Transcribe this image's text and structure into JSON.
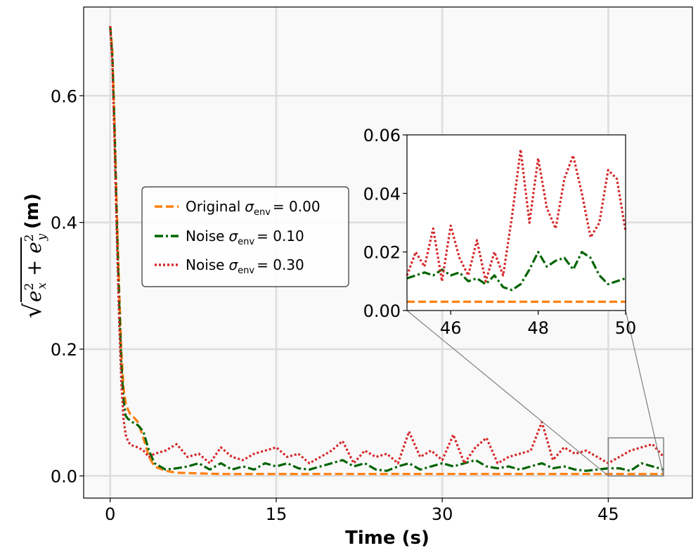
{
  "chart_data": {
    "type": "line",
    "xlabel": "Time (s)",
    "ylabel": "√(e_x² + e_y²) (m)",
    "ylabel_suffix": "(m)",
    "xlim": [
      -2.4,
      52.6
    ],
    "ylim": [
      -0.035,
      0.74
    ],
    "xticks": [
      0,
      15,
      30,
      45
    ],
    "yticks": [
      0.0,
      0.2,
      0.4,
      0.6
    ],
    "ytick_labels": [
      "0.0",
      "0.2",
      "0.4",
      "0.6"
    ],
    "grid": true,
    "legend_position": "center-left",
    "series": [
      {
        "name": "Original",
        "sigma_label": "σ",
        "sigma_sub": "env",
        "value_label": "= 0.00",
        "color": "#ff7f0e",
        "style": "dashed",
        "x": [
          0,
          0.2,
          0.4,
          0.6,
          0.8,
          1.0,
          1.2,
          1.4,
          1.6,
          1.8,
          2.0,
          2.5,
          3.0,
          3.5,
          4.0,
          5.0,
          6.0,
          8.0,
          10.0,
          15.0,
          20.0,
          30.0,
          40.0,
          45.0,
          50.0
        ],
        "y": [
          0.71,
          0.67,
          0.55,
          0.42,
          0.3,
          0.2,
          0.14,
          0.115,
          0.105,
          0.098,
          0.095,
          0.085,
          0.06,
          0.03,
          0.015,
          0.008,
          0.005,
          0.004,
          0.003,
          0.003,
          0.003,
          0.003,
          0.003,
          0.003,
          0.003
        ]
      },
      {
        "name": "Noise",
        "sigma_label": "σ",
        "sigma_sub": "env",
        "value_label": "= 0.10",
        "color": "#006400",
        "style": "dashdot",
        "noise_sigma": 0.1,
        "x": [
          0,
          0.2,
          0.4,
          0.6,
          0.8,
          1.0,
          1.2,
          1.4,
          1.6,
          1.8,
          2.0,
          2.5,
          3.0,
          3.5,
          4.0,
          5,
          6,
          7,
          8,
          9,
          10,
          11,
          12,
          13,
          14,
          15,
          16,
          17,
          18,
          19,
          20,
          21,
          22,
          23,
          24,
          25,
          26,
          27,
          28,
          29,
          30,
          31,
          32,
          33,
          34,
          35,
          36,
          37,
          38,
          39,
          40,
          41,
          42,
          43,
          44,
          45,
          46,
          47,
          48,
          49,
          50
        ],
        "y": [
          0.71,
          0.66,
          0.54,
          0.4,
          0.28,
          0.18,
          0.12,
          0.095,
          0.09,
          0.088,
          0.085,
          0.08,
          0.07,
          0.04,
          0.02,
          0.01,
          0.012,
          0.015,
          0.02,
          0.01,
          0.02,
          0.01,
          0.015,
          0.01,
          0.02,
          0.015,
          0.02,
          0.012,
          0.01,
          0.015,
          0.02,
          0.025,
          0.015,
          0.02,
          0.01,
          0.008,
          0.015,
          0.02,
          0.01,
          0.015,
          0.02,
          0.015,
          0.02,
          0.025,
          0.015,
          0.012,
          0.015,
          0.01,
          0.015,
          0.02,
          0.012,
          0.015,
          0.01,
          0.008,
          0.01,
          0.012,
          0.012,
          0.008,
          0.02,
          0.015,
          0.01
        ]
      },
      {
        "name": "Noise",
        "sigma_label": "σ",
        "sigma_sub": "env",
        "value_label": "= 0.30",
        "color": "#d62728",
        "style": "dotted",
        "noise_sigma": 0.3,
        "x": [
          0,
          0.2,
          0.4,
          0.6,
          0.8,
          1.0,
          1.2,
          1.4,
          1.6,
          1.8,
          2.0,
          2.5,
          3.0,
          3.5,
          4.0,
          5,
          6,
          7,
          8,
          9,
          10,
          11,
          12,
          13,
          14,
          15,
          16,
          17,
          18,
          19,
          20,
          21,
          22,
          23,
          24,
          25,
          26,
          27,
          28,
          29,
          30,
          31,
          32,
          33,
          34,
          35,
          36,
          37,
          38,
          39,
          40,
          41,
          42,
          43,
          44,
          45,
          46,
          47,
          48,
          49,
          50
        ],
        "y": [
          0.71,
          0.65,
          0.52,
          0.38,
          0.25,
          0.15,
          0.09,
          0.065,
          0.055,
          0.05,
          0.048,
          0.045,
          0.04,
          0.03,
          0.035,
          0.04,
          0.05,
          0.03,
          0.035,
          0.02,
          0.045,
          0.03,
          0.025,
          0.035,
          0.04,
          0.045,
          0.03,
          0.035,
          0.02,
          0.03,
          0.04,
          0.055,
          0.02,
          0.04,
          0.03,
          0.035,
          0.02,
          0.07,
          0.03,
          0.04,
          0.025,
          0.065,
          0.02,
          0.045,
          0.06,
          0.02,
          0.03,
          0.035,
          0.04,
          0.085,
          0.025,
          0.045,
          0.035,
          0.04,
          0.03,
          0.02,
          0.03,
          0.04,
          0.045,
          0.05,
          0.03
        ]
      }
    ],
    "inset": {
      "xlim": [
        45,
        50
      ],
      "ylim": [
        0.0,
        0.06
      ],
      "xticks": [
        46,
        48,
        50
      ],
      "yticks": [
        0.0,
        0.02,
        0.04,
        0.06
      ],
      "ytick_labels": [
        "0.00",
        "0.02",
        "0.04",
        "0.06"
      ],
      "series": [
        {
          "x": [
            45,
            50
          ],
          "y": [
            0.003,
            0.003
          ]
        },
        {
          "x": [
            45.0,
            45.2,
            45.4,
            45.6,
            45.8,
            46.0,
            46.2,
            46.4,
            46.6,
            46.8,
            47.0,
            47.2,
            47.4,
            47.6,
            47.8,
            48.0,
            48.2,
            48.4,
            48.6,
            48.8,
            49.0,
            49.2,
            49.4,
            49.6,
            49.8,
            50.0
          ],
          "y": [
            0.011,
            0.012,
            0.013,
            0.012,
            0.014,
            0.012,
            0.013,
            0.01,
            0.011,
            0.009,
            0.012,
            0.008,
            0.007,
            0.009,
            0.014,
            0.02,
            0.015,
            0.017,
            0.018,
            0.014,
            0.02,
            0.018,
            0.012,
            0.009,
            0.01,
            0.011
          ]
        },
        {
          "x": [
            45.0,
            45.2,
            45.4,
            45.6,
            45.8,
            46.0,
            46.2,
            46.4,
            46.6,
            46.8,
            47.0,
            47.2,
            47.4,
            47.6,
            47.8,
            48.0,
            48.2,
            48.4,
            48.6,
            48.8,
            49.0,
            49.2,
            49.4,
            49.6,
            49.8,
            50.0
          ],
          "y": [
            0.012,
            0.02,
            0.015,
            0.028,
            0.01,
            0.029,
            0.018,
            0.012,
            0.024,
            0.01,
            0.02,
            0.012,
            0.032,
            0.055,
            0.03,
            0.052,
            0.035,
            0.028,
            0.045,
            0.053,
            0.04,
            0.025,
            0.03,
            0.048,
            0.045,
            0.027
          ]
        }
      ]
    }
  },
  "colors": {
    "plot_bg": "#f9f9f9",
    "grid": "#dddddd",
    "connector": "#808080"
  }
}
